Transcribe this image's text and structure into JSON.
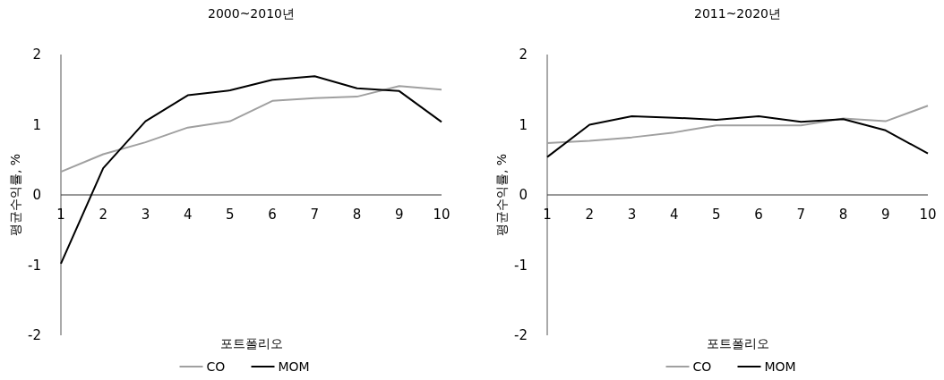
{
  "chart_data": [
    {
      "type": "line",
      "title": "2000~2010년",
      "xlabel": "포트폴리오",
      "ylabel": "평균수익률, %",
      "categories": [
        "1",
        "2",
        "3",
        "4",
        "5",
        "6",
        "7",
        "8",
        "9",
        "10"
      ],
      "ylim": [
        -2,
        2
      ],
      "yticks": [
        -2,
        -1,
        0,
        1,
        2
      ],
      "legend": "bottom",
      "grid": false,
      "marker": "none",
      "series": [
        {
          "name": "CO",
          "color": "#a0a0a0",
          "values": [
            0.33,
            0.58,
            0.75,
            0.96,
            1.05,
            1.34,
            1.38,
            1.4,
            1.55,
            1.5
          ]
        },
        {
          "name": "MOM",
          "color": "#000000",
          "values": [
            -0.98,
            0.38,
            1.05,
            1.42,
            1.49,
            1.64,
            1.69,
            1.52,
            1.48,
            1.04
          ]
        }
      ]
    },
    {
      "type": "line",
      "title": "2011~2020년",
      "xlabel": "포트폴리오",
      "ylabel": "평균수익률, %",
      "categories": [
        "1",
        "2",
        "3",
        "4",
        "5",
        "6",
        "7",
        "8",
        "9",
        "10"
      ],
      "ylim": [
        -2,
        2
      ],
      "yticks": [
        -2,
        -1,
        0,
        1,
        2
      ],
      "legend": "bottom",
      "grid": false,
      "marker": "none",
      "series": [
        {
          "name": "CO",
          "color": "#a0a0a0",
          "values": [
            0.74,
            0.77,
            0.82,
            0.89,
            0.99,
            0.99,
            0.99,
            1.09,
            1.05,
            1.27
          ]
        },
        {
          "name": "MOM",
          "color": "#000000",
          "values": [
            0.54,
            1.0,
            1.12,
            1.1,
            1.07,
            1.12,
            1.04,
            1.08,
            0.92,
            0.59
          ]
        }
      ]
    }
  ]
}
